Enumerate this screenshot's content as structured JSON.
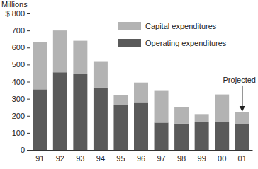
{
  "chart_data": {
    "type": "bar",
    "stacked": true,
    "ylabel": "Millions",
    "categories": [
      "91",
      "92",
      "93",
      "94",
      "95",
      "96",
      "97",
      "98",
      "99",
      "00",
      "01"
    ],
    "series": [
      {
        "name": "Operating expenditures",
        "color": "#5a5a5a",
        "values": [
          355,
          455,
          445,
          365,
          265,
          280,
          160,
          155,
          165,
          165,
          150
        ]
      },
      {
        "name": "Capital expenditures",
        "color": "#b3b3b3",
        "values": [
          275,
          245,
          195,
          155,
          55,
          115,
          190,
          95,
          45,
          160,
          70
        ]
      }
    ],
    "ylim": [
      0,
      800
    ],
    "yticks": [
      0,
      100,
      200,
      300,
      400,
      500,
      600,
      700,
      {
        "value": 800,
        "label": "$ 800"
      }
    ],
    "grid": false,
    "legend": "top-right",
    "annotations": [
      {
        "text": "Projected",
        "x": "01"
      }
    ]
  }
}
